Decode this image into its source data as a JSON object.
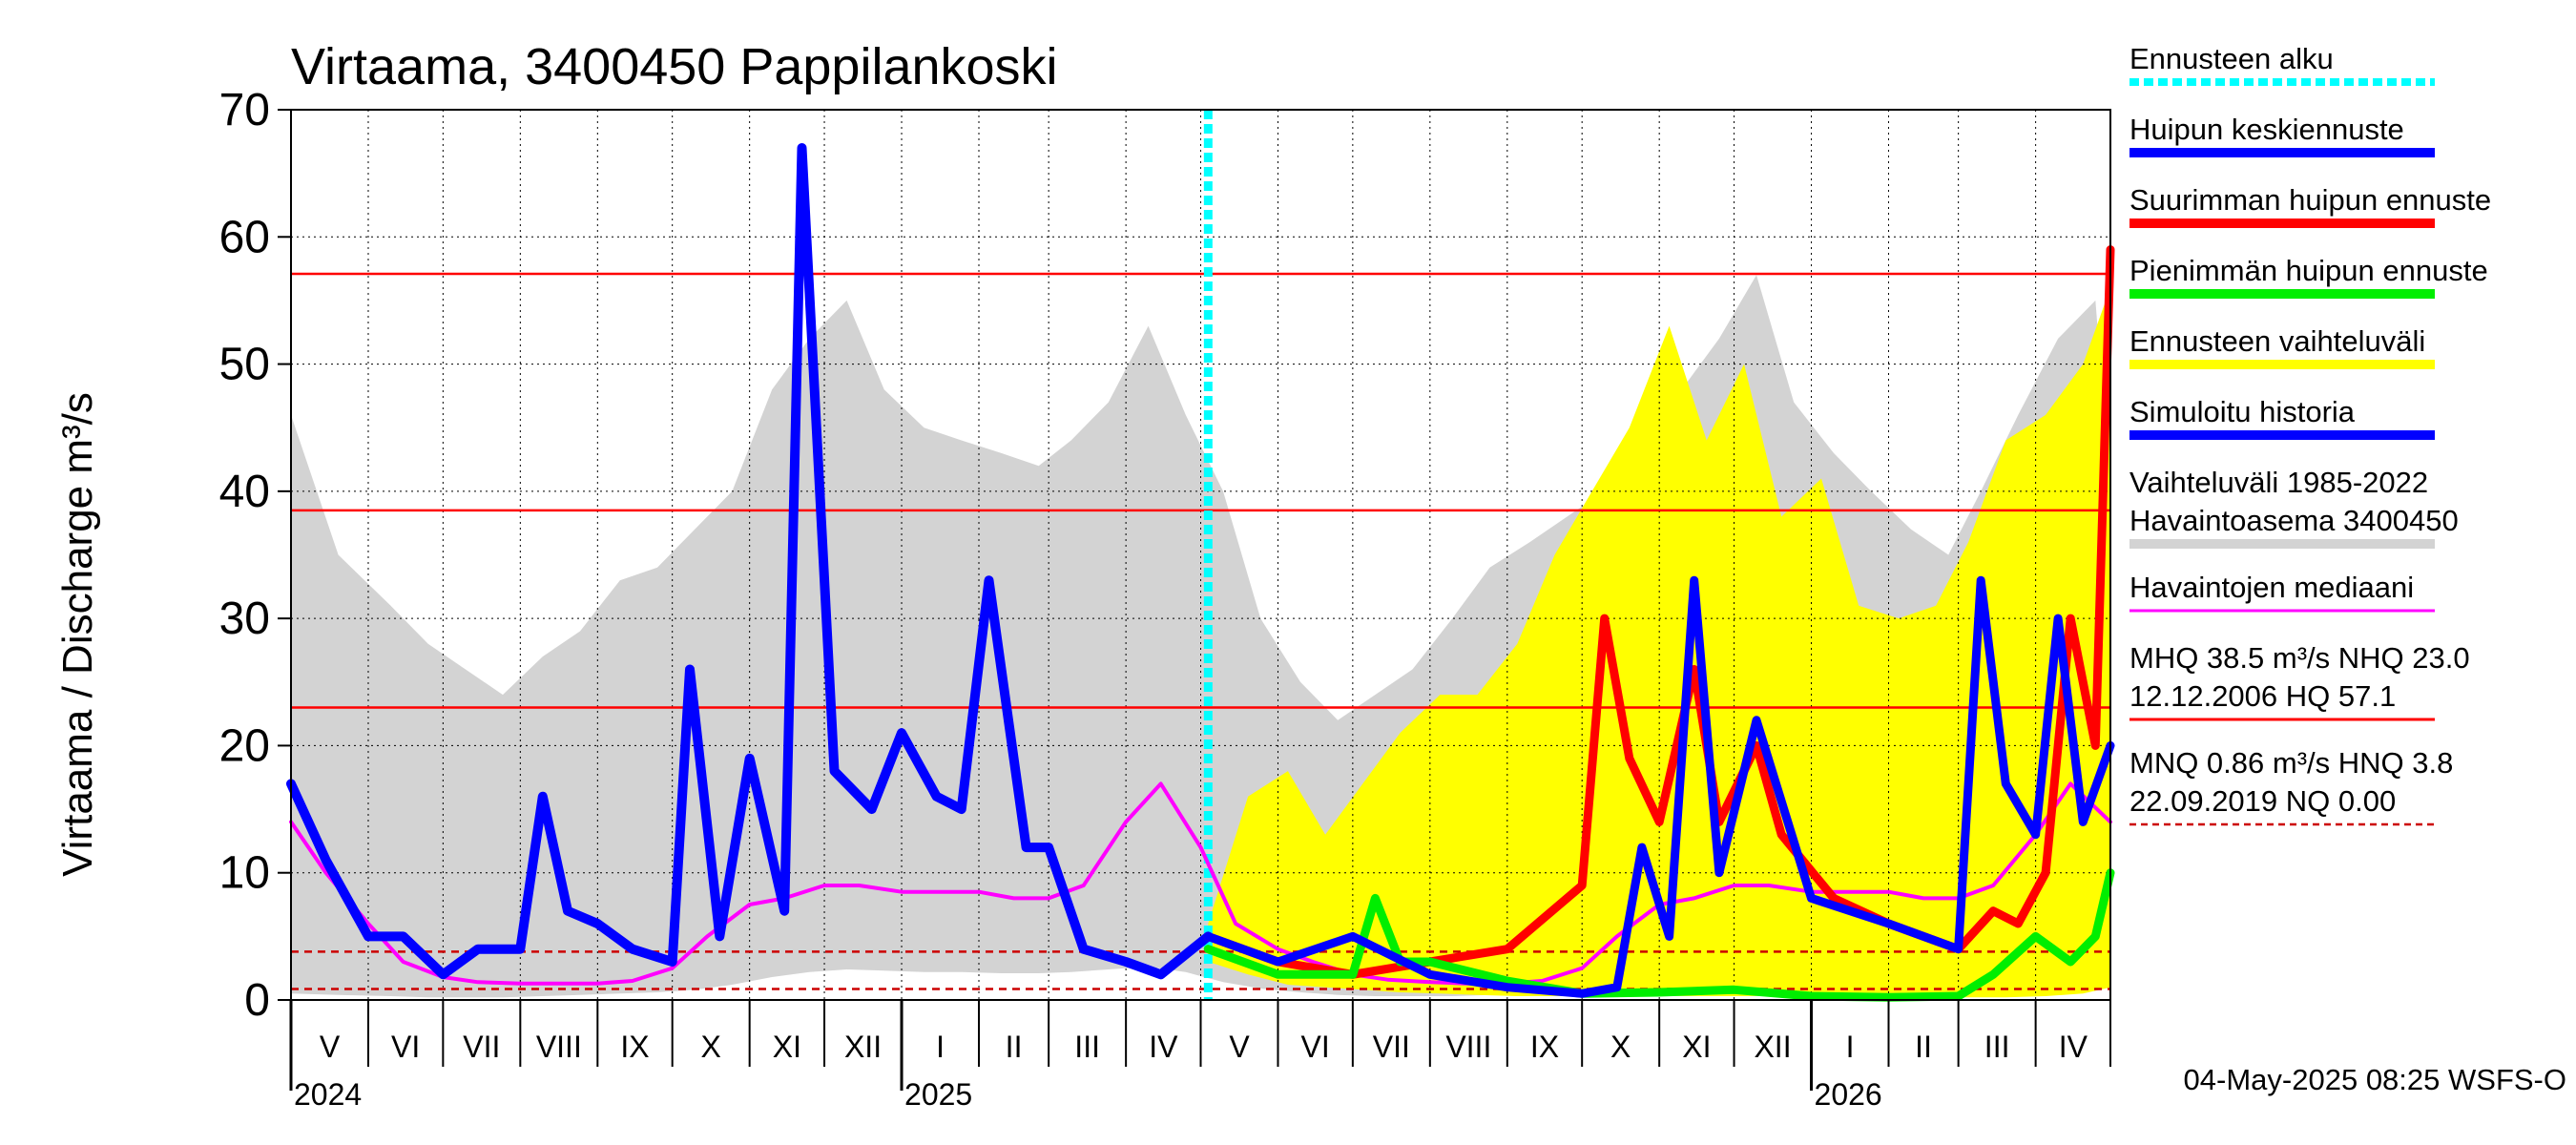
{
  "chart_data": {
    "type": "line",
    "title": "Virtaama, 3400450 Pappilankoski",
    "ylabel": "Virtaama / Discharge    m³/s",
    "ylim": [
      0,
      70
    ],
    "yticks": [
      0,
      10,
      20,
      30,
      40,
      50,
      60,
      70
    ],
    "xlim": [
      "2024-05-01",
      "2026-05-01"
    ],
    "forecast_start": "2025-05-04",
    "months": [
      {
        "label": "V",
        "start": "2024-05-01"
      },
      {
        "label": "VI",
        "start": "2024-06-01"
      },
      {
        "label": "VII",
        "start": "2024-07-01"
      },
      {
        "label": "VIII",
        "start": "2024-08-01"
      },
      {
        "label": "IX",
        "start": "2024-09-01"
      },
      {
        "label": "X",
        "start": "2024-10-01"
      },
      {
        "label": "XI",
        "start": "2024-11-01"
      },
      {
        "label": "XII",
        "start": "2024-12-01"
      },
      {
        "label": "I",
        "start": "2025-01-01"
      },
      {
        "label": "II",
        "start": "2025-02-01"
      },
      {
        "label": "III",
        "start": "2025-03-01"
      },
      {
        "label": "IV",
        "start": "2025-04-01"
      },
      {
        "label": "V",
        "start": "2025-05-01"
      },
      {
        "label": "VI",
        "start": "2025-06-01"
      },
      {
        "label": "VII",
        "start": "2025-07-01"
      },
      {
        "label": "VIII",
        "start": "2025-08-01"
      },
      {
        "label": "IX",
        "start": "2025-09-01"
      },
      {
        "label": "X",
        "start": "2025-10-01"
      },
      {
        "label": "XI",
        "start": "2025-11-01"
      },
      {
        "label": "XII",
        "start": "2025-12-01"
      },
      {
        "label": "I",
        "start": "2026-01-01"
      },
      {
        "label": "II",
        "start": "2026-02-01"
      },
      {
        "label": "III",
        "start": "2026-03-01"
      },
      {
        "label": "IV",
        "start": "2026-04-01"
      }
    ],
    "years": [
      {
        "label": "2024",
        "date": "2024-05-01"
      },
      {
        "label": "2025",
        "date": "2025-01-01"
      },
      {
        "label": "2026",
        "date": "2026-01-01"
      }
    ],
    "reference_lines": [
      {
        "name": "HQ",
        "value": 57.1,
        "style": "solid",
        "color": "#ff0000"
      },
      {
        "name": "MHQ",
        "value": 38.5,
        "style": "solid",
        "color": "#ff0000"
      },
      {
        "name": "NHQ",
        "value": 23.0,
        "style": "solid",
        "color": "#ff0000"
      },
      {
        "name": "HNQ",
        "value": 3.8,
        "style": "dashed",
        "color": "#cc0000"
      },
      {
        "name": "MNQ",
        "value": 0.86,
        "style": "dashed",
        "color": "#cc0000"
      }
    ],
    "series": [
      {
        "name": "Vaihteluväli 1985-2022 Havaintoasema 3400450",
        "kind": "band",
        "color": "#d3d3d3",
        "x": [
          "2024-05-01",
          "2024-05-20",
          "2024-06-10",
          "2024-06-25",
          "2024-07-10",
          "2024-07-25",
          "2024-08-10",
          "2024-08-25",
          "2024-09-10",
          "2024-09-25",
          "2024-10-10",
          "2024-10-25",
          "2024-11-10",
          "2024-11-25",
          "2024-12-10",
          "2024-12-25",
          "2025-01-10",
          "2025-01-25",
          "2025-02-10",
          "2025-02-25",
          "2025-03-10",
          "2025-03-25",
          "2025-04-10",
          "2025-04-25",
          "2025-05-10",
          "2025-05-25",
          "2025-06-10",
          "2025-06-25",
          "2025-07-10",
          "2025-07-25",
          "2025-08-10",
          "2025-08-25",
          "2025-09-10",
          "2025-09-25",
          "2025-10-10",
          "2025-10-25",
          "2025-11-10",
          "2025-11-25",
          "2025-12-10",
          "2025-12-25",
          "2026-01-10",
          "2026-01-25",
          "2026-02-10",
          "2026-02-25",
          "2026-03-10",
          "2026-03-25",
          "2026-04-10",
          "2026-04-25",
          "2026-05-01"
        ],
        "upper": [
          46,
          35,
          31,
          28,
          26,
          24,
          27,
          29,
          33,
          34,
          37,
          40,
          48,
          52,
          55,
          48,
          45,
          44,
          43,
          42,
          44,
          47,
          53,
          46,
          40,
          30,
          25,
          22,
          24,
          26,
          30,
          34,
          36,
          38,
          40,
          43,
          48,
          52,
          57,
          47,
          43,
          40,
          37,
          35,
          40,
          46,
          52,
          55,
          40
        ],
        "lower": [
          0.5,
          0.4,
          0.3,
          0.2,
          0.2,
          0.2,
          0.3,
          0.4,
          0.5,
          0.6,
          0.8,
          1.2,
          1.8,
          2.2,
          2.4,
          2.3,
          2.2,
          2.2,
          2.1,
          2.1,
          2.2,
          2.4,
          2.6,
          2.2,
          1.4,
          0.9,
          0.6,
          0.4,
          0.3,
          0.3,
          0.3,
          0.4,
          0.5,
          0.6,
          0.8,
          1.2,
          1.8,
          2.2,
          2.4,
          2.3,
          2.2,
          2.2,
          2.1,
          2.1,
          2.2,
          2.4,
          2.6,
          2.2,
          1.4
        ]
      },
      {
        "name": "Ennusteen vaihteluväli",
        "kind": "band",
        "color": "#ffff00",
        "x": [
          "2025-05-04",
          "2025-05-20",
          "2025-06-05",
          "2025-06-20",
          "2025-07-05",
          "2025-07-20",
          "2025-08-05",
          "2025-08-20",
          "2025-09-05",
          "2025-09-20",
          "2025-10-05",
          "2025-10-20",
          "2025-11-05",
          "2025-11-20",
          "2025-12-05",
          "2025-12-20",
          "2026-01-05",
          "2026-01-20",
          "2026-02-05",
          "2026-02-20",
          "2026-03-05",
          "2026-03-20",
          "2026-04-05",
          "2026-04-20",
          "2026-05-01"
        ],
        "upper": [
          6,
          16,
          18,
          13,
          17,
          21,
          24,
          24,
          28,
          35,
          40,
          45,
          53,
          44,
          50,
          38,
          41,
          31,
          30,
          31,
          36,
          44,
          46,
          50,
          56
        ],
        "lower": [
          3,
          2,
          1.2,
          1,
          0.8,
          0.6,
          0.5,
          0.4,
          0.3,
          0.3,
          0.3,
          0.3,
          0.3,
          0.3,
          0.3,
          0.3,
          0.2,
          0.2,
          0.2,
          0.2,
          0.2,
          0.2,
          0.3,
          0.5,
          1
        ]
      },
      {
        "name": "Havaintojen mediaani",
        "kind": "line",
        "color": "#ff00ff",
        "x": [
          "2024-05-01",
          "2024-05-15",
          "2024-06-01",
          "2024-06-15",
          "2024-07-01",
          "2024-07-15",
          "2024-08-01",
          "2024-08-15",
          "2024-09-01",
          "2024-09-15",
          "2024-10-01",
          "2024-10-15",
          "2024-11-01",
          "2024-11-15",
          "2024-12-01",
          "2024-12-15",
          "2025-01-01",
          "2025-01-15",
          "2025-02-01",
          "2025-02-15",
          "2025-03-01",
          "2025-03-15",
          "2025-04-01",
          "2025-04-15",
          "2025-05-01",
          "2025-05-15",
          "2025-06-01",
          "2025-06-15",
          "2025-07-01",
          "2025-07-15",
          "2025-08-01",
          "2025-08-15",
          "2025-09-01",
          "2025-09-15",
          "2025-10-01",
          "2025-10-15",
          "2025-11-01",
          "2025-11-15",
          "2025-12-01",
          "2025-12-15",
          "2026-01-01",
          "2026-01-15",
          "2026-02-01",
          "2026-02-15",
          "2026-03-01",
          "2026-03-15",
          "2026-04-01",
          "2026-04-15",
          "2026-05-01"
        ],
        "y": [
          14,
          10,
          6,
          3,
          1.8,
          1.4,
          1.3,
          1.3,
          1.3,
          1.5,
          2.5,
          5,
          7.5,
          8,
          9,
          9,
          8.5,
          8.5,
          8.5,
          8,
          8,
          9,
          14,
          17,
          12,
          6,
          4,
          3,
          2,
          1.6,
          1.4,
          1.3,
          1.3,
          1.5,
          2.5,
          5,
          7.5,
          8,
          9,
          9,
          8.5,
          8.5,
          8.5,
          8,
          8,
          9,
          13,
          17,
          14
        ]
      },
      {
        "name": "Simuloitu historia",
        "kind": "line",
        "color": "#0000ff",
        "x": [
          "2024-05-01",
          "2024-05-15",
          "2024-06-01",
          "2024-06-15",
          "2024-07-01",
          "2024-07-15",
          "2024-08-01",
          "2024-08-10",
          "2024-08-20",
          "2024-09-01",
          "2024-09-15",
          "2024-10-01",
          "2024-10-08",
          "2024-10-20",
          "2024-11-01",
          "2024-11-15",
          "2024-11-22",
          "2024-12-05",
          "2024-12-20",
          "2025-01-01",
          "2025-01-15",
          "2025-01-25",
          "2025-02-05",
          "2025-02-20",
          "2025-03-01",
          "2025-03-15",
          "2025-04-01",
          "2025-04-15",
          "2025-05-04"
        ],
        "y": [
          17,
          11,
          5,
          5,
          2,
          4,
          4,
          16,
          7,
          6,
          4,
          3,
          26,
          5,
          19,
          7,
          67,
          18,
          15,
          21,
          16,
          15,
          33,
          12,
          12,
          4,
          3,
          2,
          5
        ]
      },
      {
        "name": "Suurimman huipun ennuste",
        "kind": "line",
        "color": "#ff0000",
        "x": [
          "2025-05-04",
          "2025-06-01",
          "2025-07-01",
          "2025-08-01",
          "2025-09-01",
          "2025-10-01",
          "2025-10-10",
          "2025-10-20",
          "2025-11-01",
          "2025-11-15",
          "2025-11-25",
          "2025-12-10",
          "2025-12-20",
          "2026-01-10",
          "2026-02-01",
          "2026-03-01",
          "2026-03-15",
          "2026-03-25",
          "2026-04-05",
          "2026-04-15",
          "2026-04-25",
          "2026-05-01"
        ],
        "y": [
          5,
          3,
          2,
          3,
          4,
          9,
          30,
          19,
          14,
          26,
          14,
          20,
          13,
          8,
          6,
          4,
          7,
          6,
          10,
          30,
          20,
          59
        ]
      },
      {
        "name": "Huipun keskiennuste",
        "kind": "line",
        "color": "#0000ff",
        "x": [
          "2025-05-04",
          "2025-06-01",
          "2025-07-01",
          "2025-08-01",
          "2025-09-01",
          "2025-10-01",
          "2025-10-15",
          "2025-10-25",
          "2025-11-05",
          "2025-11-15",
          "2025-11-25",
          "2025-12-10",
          "2026-01-01",
          "2026-02-01",
          "2026-03-01",
          "2026-03-10",
          "2026-03-20",
          "2026-04-01",
          "2026-04-10",
          "2026-04-20",
          "2026-05-01"
        ],
        "y": [
          5,
          3,
          5,
          2,
          1,
          0.5,
          1,
          12,
          5,
          33,
          10,
          22,
          8,
          6,
          4,
          33,
          17,
          13,
          30,
          14,
          20
        ]
      },
      {
        "name": "Pienimmän huipun ennuste",
        "kind": "line",
        "color": "#00ee00",
        "x": [
          "2025-05-04",
          "2025-06-01",
          "2025-07-01",
          "2025-07-10",
          "2025-07-20",
          "2025-08-01",
          "2025-09-01",
          "2025-10-01",
          "2025-11-01",
          "2025-12-01",
          "2026-01-01",
          "2026-02-01",
          "2026-03-01",
          "2026-03-15",
          "2026-04-01",
          "2026-04-15",
          "2026-04-25",
          "2026-05-01"
        ],
        "y": [
          4,
          2,
          2,
          8,
          3,
          3,
          1.5,
          0.5,
          0.6,
          0.8,
          0.3,
          0.2,
          0.3,
          2,
          5,
          3,
          5,
          10
        ]
      }
    ],
    "legend": {
      "placement": "right",
      "items": [
        {
          "label": "Ennusteen alku",
          "color": "#00ffff",
          "style": "dotted"
        },
        {
          "label": "Huipun keskiennuste",
          "color": "#0000ff",
          "style": "solid"
        },
        {
          "label": "Suurimman huipun ennuste",
          "color": "#ff0000",
          "style": "solid"
        },
        {
          "label": "Pienimmän huipun ennuste",
          "color": "#00ee00",
          "style": "solid"
        },
        {
          "label": "Ennusteen vaihteluväli",
          "color": "#ffff00",
          "style": "solid"
        },
        {
          "label": "Simuloitu historia",
          "color": "#0000ff",
          "style": "solid"
        },
        {
          "label": "Vaihteluväli 1985-2022",
          "label2": " Havaintoasema 3400450",
          "color": "#d3d3d3",
          "style": "solid"
        },
        {
          "label": "Havaintojen mediaani",
          "color": "#ff00ff",
          "style": "thin"
        },
        {
          "label": "MHQ 38.5 m³/s NHQ 23.0",
          "label2": "12.12.2006 HQ 57.1",
          "color": "#ff0000",
          "style": "thin"
        },
        {
          "label": "MNQ 0.86 m³/s HNQ  3.8",
          "label2": "22.09.2019 NQ 0.00",
          "color": "#cc0000",
          "style": "dashed"
        }
      ]
    },
    "footer": "04-May-2025 08:25 WSFS-O"
  }
}
